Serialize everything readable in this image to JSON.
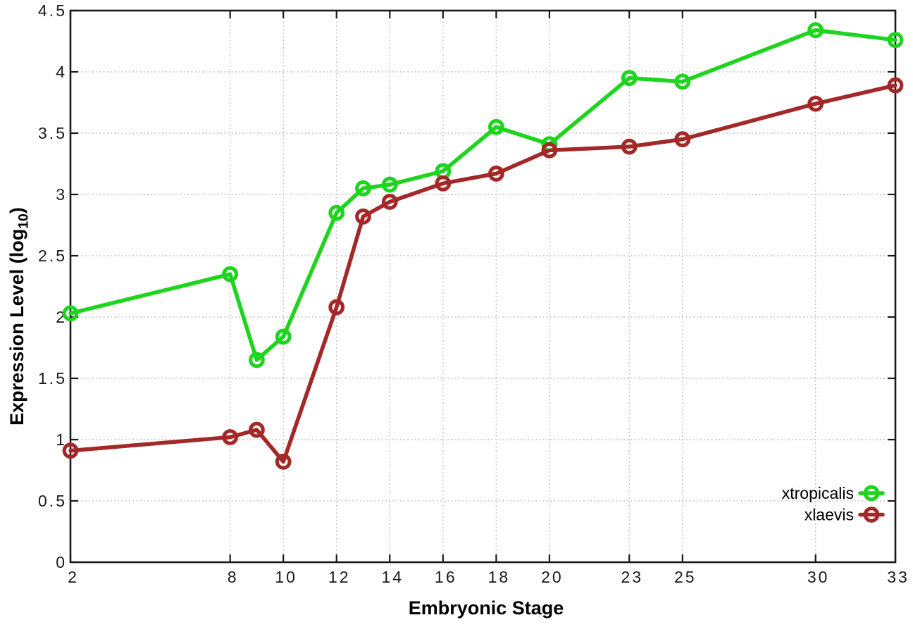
{
  "chart_data": {
    "type": "line",
    "style": "linespoints-open-circle",
    "xlabel": "Embryonic Stage",
    "ylabel": "Expression Level (log10)",
    "ylabel_parts": {
      "prefix": "Expression Level (log",
      "sub": "10",
      "suffix": ")"
    },
    "xlim": [
      2,
      33
    ],
    "ylim": [
      0,
      4.5
    ],
    "grid": true,
    "legend_position": "bottom-right-inside",
    "x_ticks": [
      2,
      8,
      10,
      12,
      14,
      16,
      18,
      20,
      23,
      25,
      30,
      33
    ],
    "x_tick_labels": [
      "2",
      "8",
      "10",
      "12",
      "14",
      "16",
      "18",
      "20",
      "23",
      "25",
      "30",
      "33"
    ],
    "y_ticks": [
      0,
      0.5,
      1,
      1.5,
      2,
      2.5,
      3,
      3.5,
      4,
      4.5
    ],
    "y_tick_labels": [
      "0",
      "0.5",
      "1",
      "1.5",
      "2",
      "2.5",
      "3",
      "3.5",
      "4",
      "4.5"
    ],
    "x": [
      2,
      8,
      9,
      10,
      12,
      13,
      14,
      16,
      18,
      20,
      23,
      25,
      30,
      33
    ],
    "series": [
      {
        "name": "xtropicalis",
        "color": "#1ed41e",
        "values": [
          2.03,
          2.35,
          1.65,
          1.84,
          2.85,
          3.05,
          3.08,
          3.19,
          3.55,
          3.41,
          3.95,
          3.92,
          4.34,
          4.26
        ]
      },
      {
        "name": "xlaevis",
        "color": "#a32929",
        "values": [
          0.91,
          1.02,
          1.08,
          0.82,
          2.08,
          2.82,
          2.94,
          3.09,
          3.17,
          3.36,
          3.39,
          3.45,
          3.74,
          3.89
        ]
      }
    ],
    "colors": {
      "axis": "#1a1a1a",
      "grid": "#b8b8b8",
      "tick_text": "#1a1a1a"
    }
  }
}
